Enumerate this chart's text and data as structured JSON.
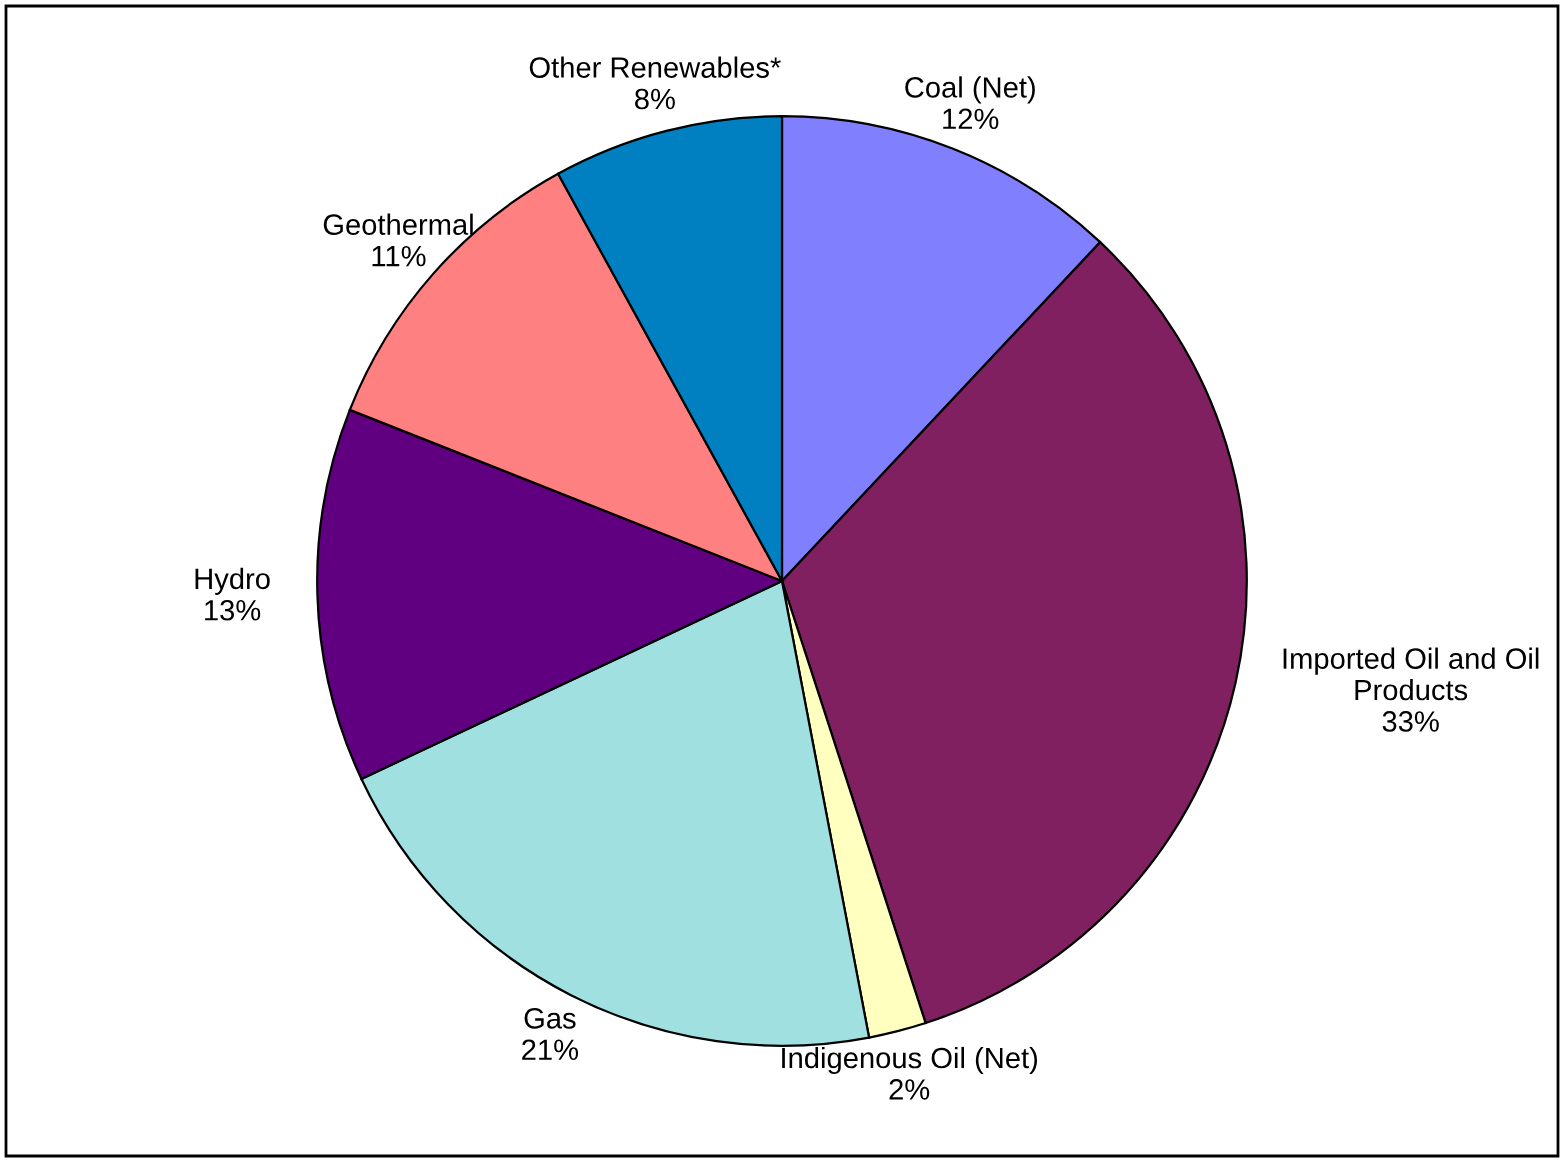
{
  "chart_data": {
    "type": "pie",
    "categories": [
      "Coal (Net)",
      "Imported Oil and Oil\nProducts",
      "Indigenous Oil (Net)",
      "Gas",
      "Hydro",
      "Geothermal",
      "Other Renewables*"
    ],
    "values": [
      12,
      33,
      2,
      21,
      13,
      11,
      8
    ],
    "value_labels": [
      "12%",
      "33%",
      "2%",
      "21%",
      "13%",
      "11%",
      "8%"
    ],
    "colors": [
      "#8080ff",
      "#802060",
      "#ffffc0",
      "#a0e0e0",
      "#600080",
      "#ff8080",
      "#0080c0"
    ],
    "legend": false
  }
}
